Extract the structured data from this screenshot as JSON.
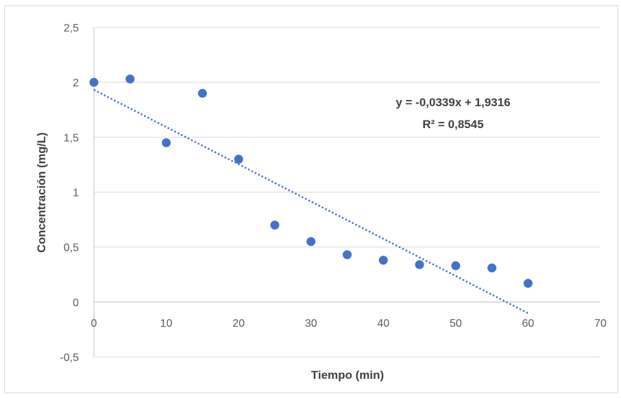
{
  "chart_data": {
    "type": "scatter",
    "xlabel": "Tiempo (min)",
    "ylabel": "Concentración (mg/L)",
    "xlim": [
      0,
      70
    ],
    "ylim": [
      -0.5,
      2.5
    ],
    "x_ticks": [
      "0",
      "10",
      "20",
      "30",
      "40",
      "50",
      "60",
      "70"
    ],
    "y_ticks": [
      "-0,5",
      "0",
      "0,5",
      "1",
      "1,5",
      "2",
      "2,5"
    ],
    "grid": "horizontal",
    "series": [
      {
        "color": "#4472c4",
        "x": [
          0,
          5,
          10,
          15,
          20,
          25,
          30,
          35,
          40,
          45,
          50,
          55,
          60
        ],
        "y": [
          2.0,
          2.03,
          1.45,
          1.9,
          1.3,
          0.7,
          0.55,
          0.43,
          0.38,
          0.34,
          0.33,
          0.31,
          0.17
        ]
      }
    ],
    "trendline": {
      "type": "linear",
      "style": "dotted",
      "color": "#4472c4",
      "slope": -0.0339,
      "intercept": 1.9316,
      "x_range": [
        0,
        60
      ],
      "equation_label": "y = -0,0339x + 1,9316",
      "r2_label": "R² = 0,8545"
    }
  }
}
